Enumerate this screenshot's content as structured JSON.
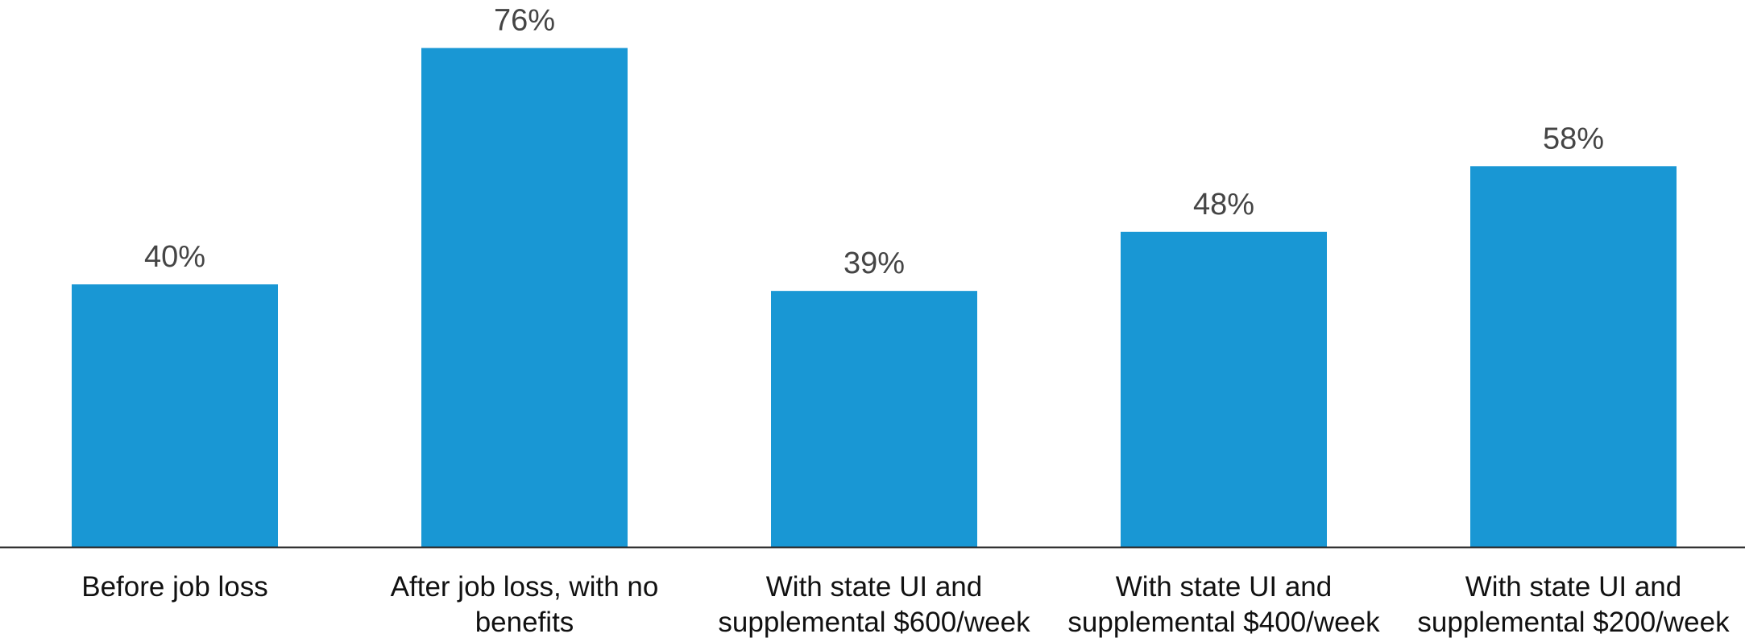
{
  "chart_data": {
    "type": "bar",
    "title": "",
    "xlabel": "",
    "ylabel": "",
    "ylim": [
      0,
      100
    ],
    "grid": false,
    "legend": "none",
    "bar_color": "#1997D4",
    "axis_color": "#222222",
    "categories": [
      [
        "Before job loss"
      ],
      [
        "After job loss, with no",
        "benefits"
      ],
      [
        "With state UI and",
        "supplemental $600/week"
      ],
      [
        "With state UI and",
        "supplemental $400/week"
      ],
      [
        "With state UI and",
        "supplemental $200/week"
      ]
    ],
    "values": [
      40,
      76,
      39,
      48,
      58
    ],
    "data_labels": [
      "40%",
      "76%",
      "39%",
      "48%",
      "58%"
    ]
  }
}
